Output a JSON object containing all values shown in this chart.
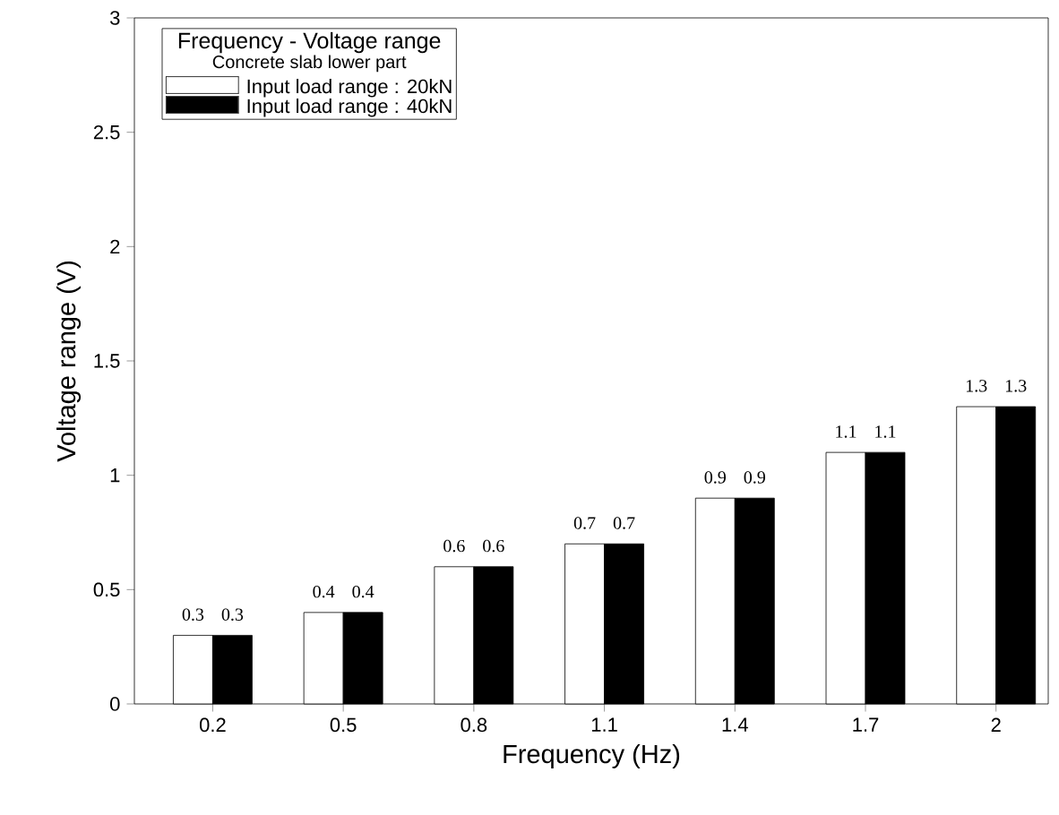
{
  "chart_data": {
    "type": "bar",
    "xlabel": "Frequency (Hz)",
    "ylabel": "Voltage range (V)",
    "legend_title": "Frequency - Voltage range",
    "annotations": [
      "Concrete slab lower part"
    ],
    "categories": [
      "0.2",
      "0.5",
      "0.8",
      "1.1",
      "1.4",
      "1.7",
      "2"
    ],
    "series": [
      {
        "name": "Input load range : 20kN",
        "color": "#ffffff",
        "values": [
          0.3,
          0.4,
          0.6,
          0.7,
          0.9,
          1.1,
          1.3
        ]
      },
      {
        "name": "Input load range : 40kN",
        "color": "#000000",
        "values": [
          0.3,
          0.4,
          0.6,
          0.7,
          0.9,
          1.1,
          1.3
        ]
      }
    ],
    "ylim": [
      0,
      3
    ],
    "yticks": [
      0,
      0.5,
      1,
      1.5,
      2,
      2.5,
      3
    ],
    "data_labels": true,
    "legend": "top left",
    "grid": false
  }
}
